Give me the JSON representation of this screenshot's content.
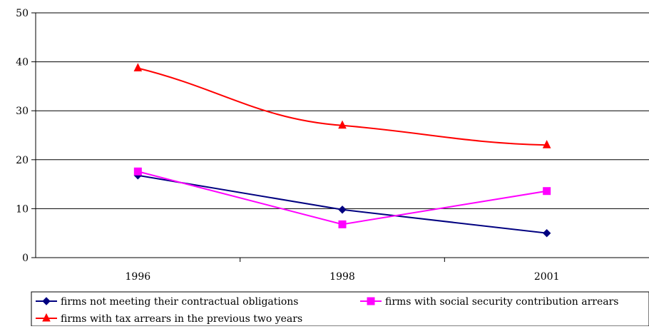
{
  "chart_data": {
    "type": "line",
    "title": "",
    "xlabel": "",
    "ylabel": "",
    "categories": [
      "1996",
      "1998",
      "2001"
    ],
    "ylim": [
      0,
      50
    ],
    "yticks": [
      0,
      10,
      20,
      30,
      40,
      50
    ],
    "grid": "horizontal",
    "legend_position": "bottom",
    "series": [
      {
        "name": "firms not meeting their contractual obligations",
        "values": [
          16.8,
          9.8,
          5.0
        ],
        "color": "#000080",
        "marker": "diamond"
      },
      {
        "name": "firms with social security contribution arrears",
        "values": [
          17.6,
          6.8,
          13.6
        ],
        "color": "#ff00ff",
        "marker": "square"
      },
      {
        "name": "firms with tax arrears in the previous two years",
        "values": [
          38.7,
          27.0,
          23.0
        ],
        "color": "#ff0000",
        "marker": "triangle"
      }
    ]
  }
}
